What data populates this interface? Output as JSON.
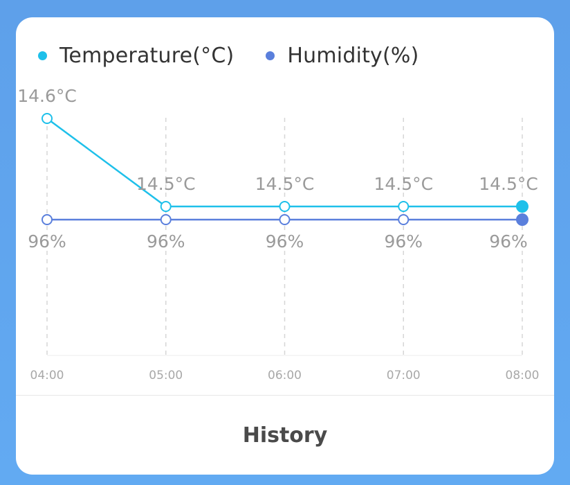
{
  "legend": {
    "temperature": "Temperature(°C)",
    "humidity": "Humidity(%)"
  },
  "colors": {
    "temperature": "#1ec0ea",
    "humidity": "#5a7fdc",
    "label": "#9a9a9a",
    "grid": "#d6d6d6"
  },
  "chart_data": {
    "type": "line",
    "categories": [
      "04:00",
      "05:00",
      "06:00",
      "07:00",
      "08:00"
    ],
    "series": [
      {
        "name": "Temperature(°C)",
        "values": [
          14.6,
          14.5,
          14.5,
          14.5,
          14.5
        ],
        "labels": [
          "14.6°C",
          "14.5°C",
          "14.5°C",
          "14.5°C",
          "14.5°C"
        ]
      },
      {
        "name": "Humidity(%)",
        "values": [
          96,
          96,
          96,
          96,
          96
        ],
        "labels": [
          "96%",
          "96%",
          "96%",
          "96%",
          "96%"
        ]
      }
    ],
    "grid": "vertical dashed"
  },
  "footer": {
    "history_label": "History"
  }
}
